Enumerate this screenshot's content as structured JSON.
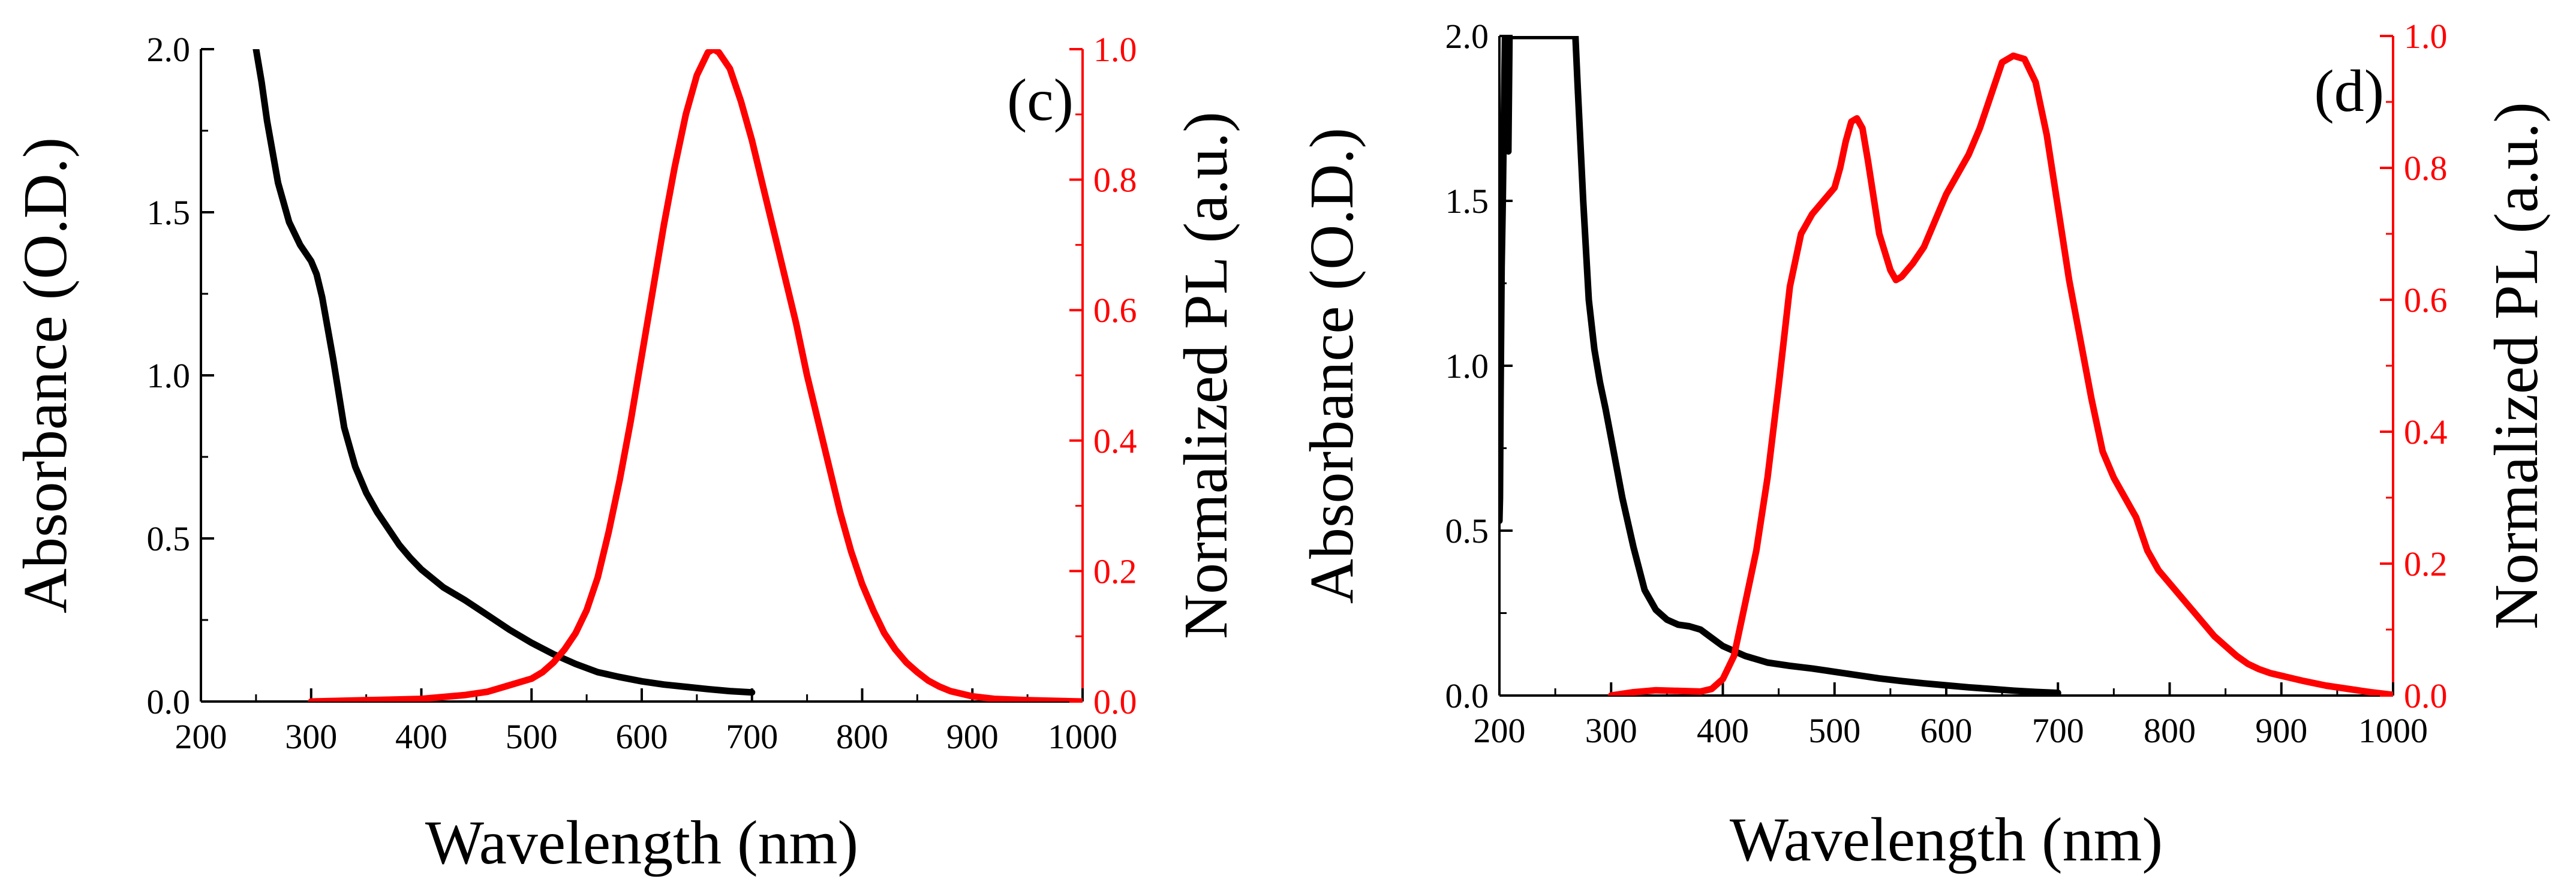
{
  "colors": {
    "absorbance": "#000000",
    "pl": "#ff0000"
  },
  "chart_data": [
    {
      "type": "line",
      "panel_label": "(c)",
      "xlabel": "Wavelength (nm)",
      "ylabel": "Absorbance (O.D.)",
      "y2label": "Normalized PL (a.u.)",
      "xlim": [
        200,
        1000
      ],
      "ylim": [
        0,
        2.0
      ],
      "y2lim": [
        0,
        1.0
      ],
      "xticks": [
        200,
        300,
        400,
        500,
        600,
        700,
        800,
        900,
        1000
      ],
      "yticks": [
        "0.0",
        "0.5",
        "1.0",
        "1.5",
        "2.0"
      ],
      "y2ticks": [
        "0.0",
        "0.2",
        "0.4",
        "0.6",
        "0.8",
        "1.0"
      ],
      "series": [
        {
          "name": "Absorbance",
          "axis": "left",
          "color": "#000000",
          "points": [
            [
              250,
              2.0
            ],
            [
              255,
              1.9
            ],
            [
              260,
              1.78
            ],
            [
              270,
              1.59
            ],
            [
              280,
              1.47
            ],
            [
              290,
              1.4
            ],
            [
              300,
              1.35
            ],
            [
              305,
              1.31
            ],
            [
              310,
              1.24
            ],
            [
              320,
              1.05
            ],
            [
              330,
              0.84
            ],
            [
              340,
              0.72
            ],
            [
              350,
              0.64
            ],
            [
              360,
              0.58
            ],
            [
              370,
              0.53
            ],
            [
              380,
              0.48
            ],
            [
              390,
              0.44
            ],
            [
              400,
              0.405
            ],
            [
              420,
              0.35
            ],
            [
              440,
              0.31
            ],
            [
              460,
              0.265
            ],
            [
              480,
              0.22
            ],
            [
              500,
              0.18
            ],
            [
              520,
              0.145
            ],
            [
              540,
              0.115
            ],
            [
              560,
              0.09
            ],
            [
              580,
              0.075
            ],
            [
              600,
              0.062
            ],
            [
              620,
              0.052
            ],
            [
              640,
              0.045
            ],
            [
              660,
              0.038
            ],
            [
              680,
              0.032
            ],
            [
              700,
              0.028
            ]
          ]
        },
        {
          "name": "Normalized PL",
          "axis": "right",
          "color": "#ff0000",
          "points": [
            [
              300,
              0.0
            ],
            [
              350,
              0.002
            ],
            [
              400,
              0.004
            ],
            [
              440,
              0.01
            ],
            [
              460,
              0.015
            ],
            [
              480,
              0.025
            ],
            [
              500,
              0.035
            ],
            [
              510,
              0.045
            ],
            [
              520,
              0.06
            ],
            [
              530,
              0.08
            ],
            [
              540,
              0.105
            ],
            [
              550,
              0.14
            ],
            [
              560,
              0.19
            ],
            [
              570,
              0.26
            ],
            [
              580,
              0.34
            ],
            [
              590,
              0.43
            ],
            [
              600,
              0.53
            ],
            [
              610,
              0.63
            ],
            [
              620,
              0.73
            ],
            [
              630,
              0.82
            ],
            [
              640,
              0.9
            ],
            [
              650,
              0.96
            ],
            [
              660,
              0.995
            ],
            [
              665,
              1.0
            ],
            [
              670,
              0.995
            ],
            [
              680,
              0.97
            ],
            [
              690,
              0.92
            ],
            [
              700,
              0.86
            ],
            [
              710,
              0.79
            ],
            [
              720,
              0.72
            ],
            [
              730,
              0.65
            ],
            [
              740,
              0.58
            ],
            [
              750,
              0.5
            ],
            [
              760,
              0.43
            ],
            [
              770,
              0.36
            ],
            [
              780,
              0.29
            ],
            [
              790,
              0.23
            ],
            [
              800,
              0.18
            ],
            [
              810,
              0.14
            ],
            [
              820,
              0.105
            ],
            [
              830,
              0.08
            ],
            [
              840,
              0.06
            ],
            [
              850,
              0.045
            ],
            [
              860,
              0.032
            ],
            [
              870,
              0.023
            ],
            [
              880,
              0.016
            ],
            [
              900,
              0.008
            ],
            [
              920,
              0.004
            ],
            [
              950,
              0.002
            ],
            [
              1000,
              0.0
            ]
          ]
        }
      ]
    },
    {
      "type": "line",
      "panel_label": "(d)",
      "xlabel": "Wavelength (nm)",
      "ylabel": "Absorbance (O.D.)",
      "y2label": "Normalized PL (a.u.)",
      "xlim": [
        200,
        1000
      ],
      "ylim": [
        0,
        2.0
      ],
      "y2lim": [
        0,
        1.0
      ],
      "xticks": [
        200,
        300,
        400,
        500,
        600,
        700,
        800,
        900,
        1000
      ],
      "yticks": [
        "0.0",
        "0.5",
        "1.0",
        "1.5",
        "2.0"
      ],
      "y2ticks": [
        "0.0",
        "0.2",
        "0.4",
        "0.6",
        "0.8",
        "1.0"
      ],
      "series": [
        {
          "name": "Absorbance",
          "axis": "left",
          "color": "#000000",
          "points": [
            [
              200,
              0.53
            ],
            [
              200.5,
              0.6
            ],
            [
              201,
              0.9
            ],
            [
              202,
              1.3
            ],
            [
              203,
              1.5
            ],
            [
              204,
              1.75
            ],
            [
              205,
              2.0
            ],
            [
              206,
              1.9
            ],
            [
              207,
              1.7
            ],
            [
              208,
              1.65
            ],
            [
              209,
              2.0
            ],
            [
              268,
              2.0
            ],
            [
              270,
              1.85
            ],
            [
              275,
              1.5
            ],
            [
              280,
              1.2
            ],
            [
              285,
              1.05
            ],
            [
              290,
              0.95
            ],
            [
              295,
              0.87
            ],
            [
              300,
              0.78
            ],
            [
              310,
              0.6
            ],
            [
              320,
              0.45
            ],
            [
              330,
              0.32
            ],
            [
              340,
              0.26
            ],
            [
              350,
              0.23
            ],
            [
              360,
              0.215
            ],
            [
              370,
              0.21
            ],
            [
              380,
              0.2
            ],
            [
              390,
              0.175
            ],
            [
              400,
              0.15
            ],
            [
              420,
              0.12
            ],
            [
              440,
              0.1
            ],
            [
              460,
              0.09
            ],
            [
              480,
              0.082
            ],
            [
              500,
              0.072
            ],
            [
              520,
              0.062
            ],
            [
              540,
              0.052
            ],
            [
              560,
              0.044
            ],
            [
              580,
              0.037
            ],
            [
              600,
              0.031
            ],
            [
              620,
              0.025
            ],
            [
              640,
              0.02
            ],
            [
              660,
              0.015
            ],
            [
              680,
              0.011
            ],
            [
              700,
              0.008
            ]
          ]
        },
        {
          "name": "Normalized PL",
          "axis": "right",
          "color": "#ff0000",
          "points": [
            [
              300,
              0.0
            ],
            [
              320,
              0.005
            ],
            [
              340,
              0.008
            ],
            [
              360,
              0.007
            ],
            [
              380,
              0.006
            ],
            [
              390,
              0.01
            ],
            [
              400,
              0.025
            ],
            [
              410,
              0.06
            ],
            [
              420,
              0.14
            ],
            [
              430,
              0.22
            ],
            [
              440,
              0.33
            ],
            [
              450,
              0.47
            ],
            [
              460,
              0.62
            ],
            [
              470,
              0.7
            ],
            [
              480,
              0.73
            ],
            [
              490,
              0.75
            ],
            [
              500,
              0.77
            ],
            [
              505,
              0.8
            ],
            [
              510,
              0.84
            ],
            [
              515,
              0.87
            ],
            [
              520,
              0.875
            ],
            [
              525,
              0.86
            ],
            [
              530,
              0.81
            ],
            [
              540,
              0.7
            ],
            [
              550,
              0.645
            ],
            [
              555,
              0.63
            ],
            [
              560,
              0.635
            ],
            [
              570,
              0.655
            ],
            [
              580,
              0.68
            ],
            [
              590,
              0.72
            ],
            [
              600,
              0.76
            ],
            [
              610,
              0.79
            ],
            [
              620,
              0.82
            ],
            [
              630,
              0.86
            ],
            [
              640,
              0.91
            ],
            [
              650,
              0.96
            ],
            [
              660,
              0.97
            ],
            [
              670,
              0.965
            ],
            [
              680,
              0.93
            ],
            [
              690,
              0.85
            ],
            [
              700,
              0.74
            ],
            [
              710,
              0.63
            ],
            [
              720,
              0.54
            ],
            [
              730,
              0.45
            ],
            [
              740,
              0.37
            ],
            [
              750,
              0.33
            ],
            [
              760,
              0.3
            ],
            [
              770,
              0.27
            ],
            [
              780,
              0.22
            ],
            [
              790,
              0.19
            ],
            [
              800,
              0.17
            ],
            [
              810,
              0.15
            ],
            [
              820,
              0.13
            ],
            [
              830,
              0.11
            ],
            [
              840,
              0.09
            ],
            [
              850,
              0.075
            ],
            [
              860,
              0.06
            ],
            [
              870,
              0.048
            ],
            [
              880,
              0.04
            ],
            [
              890,
              0.034
            ],
            [
              900,
              0.03
            ],
            [
              920,
              0.022
            ],
            [
              940,
              0.015
            ],
            [
              960,
              0.01
            ],
            [
              980,
              0.005
            ],
            [
              1000,
              0.001
            ]
          ]
        }
      ]
    }
  ]
}
